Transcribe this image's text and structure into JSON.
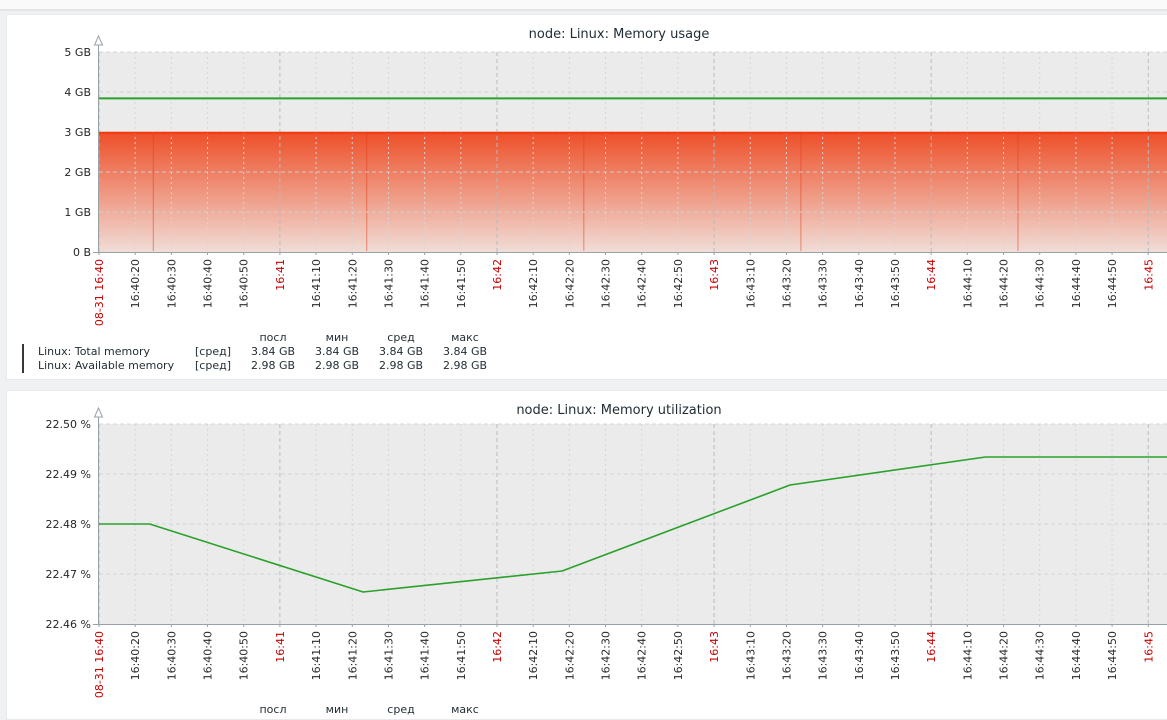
{
  "colors": {
    "plot_bg": "#ebebeb",
    "grid_minor": "#d3d7da",
    "grid_major": "#b3bcc3",
    "grid_horizontal": "#cfd3d6",
    "axis": "#99a1a8",
    "tick_label": "#2b2b2b",
    "tick_label_red": "#c80000",
    "green_line": "#2aa12a",
    "red_line": "#f23a10",
    "area_top": "#ee5029",
    "area_bottom": "#f0ddd7",
    "legend_green": "#2ba42b",
    "legend_red": "#f03c16"
  },
  "charts": [
    {
      "title": "node: Linux: Memory usage",
      "y_labels": [
        "5 GB",
        "4 GB",
        "3 GB",
        "2 GB",
        "1 GB",
        "0 B"
      ],
      "x_ticks": {
        "labels": [
          "08-31 16:40",
          "16:40:20",
          "16:40:30",
          "16:40:40",
          "16:40:50",
          "16:41",
          "16:41:10",
          "16:41:20",
          "16:41:30",
          "16:41:40",
          "16:41:50",
          "16:42",
          "16:42:10",
          "16:42:20",
          "16:42:30",
          "16:42:40",
          "16:42:50",
          "16:43",
          "16:43:10",
          "16:43:20",
          "16:43:30",
          "16:43:40",
          "16:43:50",
          "16:44",
          "16:44:10",
          "16:44:20",
          "16:44:30",
          "16:44:40",
          "16:44:50",
          "16:45"
        ],
        "red_indices": [
          0,
          5,
          11,
          17,
          23,
          29
        ]
      },
      "legend": {
        "headers": [
          "посл",
          "мин",
          "сред",
          "макс"
        ],
        "rows": [
          {
            "color": "#2ba42b",
            "label": "Linux: Total memory",
            "func": "[сред]",
            "values": [
              "3.84 GB",
              "3.84 GB",
              "3.84 GB",
              "3.84 GB"
            ]
          },
          {
            "color": "#f03c16",
            "label": "Linux: Available memory",
            "func": "[сред]",
            "values": [
              "2.98 GB",
              "2.98 GB",
              "2.98 GB",
              "2.98 GB"
            ]
          }
        ]
      },
      "chart_data": {
        "type": "line",
        "title": "node: Linux: Memory usage",
        "x_range": [
          "08-31 16:40:10",
          "08-31 16:45:19"
        ],
        "x_tick_interval_s": 10,
        "ylim": [
          0,
          5
        ],
        "y_unit": "GB",
        "grid": true,
        "legend_position": "bottom",
        "series": [
          {
            "name": "Linux: Total memory",
            "style": "line",
            "color": "#2aa12a",
            "constant_value_gb": 3.84
          },
          {
            "name": "Linux: Available memory",
            "style": "gradient-area",
            "color": "#f23a10",
            "constant_value_gb": 2.98,
            "point_seam_offsets_s": [
              15,
              74,
              134,
              194,
              254
            ]
          }
        ],
        "stats": {
          "Linux: Total memory": {
            "посл": "3.84 GB",
            "мин": "3.84 GB",
            "сред": "3.84 GB",
            "макс": "3.84 GB"
          },
          "Linux: Available memory": {
            "посл": "2.98 GB",
            "мин": "2.98 GB",
            "сред": "2.98 GB",
            "макс": "2.98 GB"
          }
        }
      }
    },
    {
      "title": "node: Linux: Memory utilization",
      "y_labels": [
        "22.50 %",
        "22.49 %",
        "22.48 %",
        "22.47 %",
        "22.46 %"
      ],
      "x_ticks": {
        "labels": [
          "08-31 16:40",
          "16:40:20",
          "16:40:30",
          "16:40:40",
          "16:40:50",
          "16:41",
          "16:41:10",
          "16:41:20",
          "16:41:30",
          "16:41:40",
          "16:41:50",
          "16:42",
          "16:42:10",
          "16:42:20",
          "16:42:30",
          "16:42:40",
          "16:42:50",
          "16:43",
          "16:43:10",
          "16:43:20",
          "16:43:30",
          "16:43:40",
          "16:43:50",
          "16:44",
          "16:44:10",
          "16:44:20",
          "16:44:30",
          "16:44:40",
          "16:44:50",
          "16:45"
        ],
        "red_indices": [
          0,
          5,
          11,
          17,
          23,
          29
        ]
      },
      "legend": {
        "headers": [
          "посл",
          "мин",
          "сред",
          "макс"
        ],
        "rows": []
      },
      "chart_data": {
        "type": "line",
        "title": "node: Linux: Memory utilization",
        "x_range": [
          "08-31 16:40:10",
          "08-31 16:45:19"
        ],
        "x_tick_interval_s": 10,
        "ylim": [
          22.46,
          22.5
        ],
        "y_unit": "%",
        "grid": true,
        "series": [
          {
            "name": "Linux: Memory utilization",
            "style": "line",
            "color": "#2aa12a",
            "points_seconds_value": [
              [
                0,
                22.48
              ],
              [
                14,
                22.48
              ],
              [
                73,
                22.4664
              ],
              [
                128,
                22.4706
              ],
              [
                191,
                22.4878
              ],
              [
                245,
                22.4934
              ],
              [
                309,
                22.4934
              ]
            ],
            "points_x_origin": "08-31 16:40:10"
          }
        ]
      }
    }
  ]
}
